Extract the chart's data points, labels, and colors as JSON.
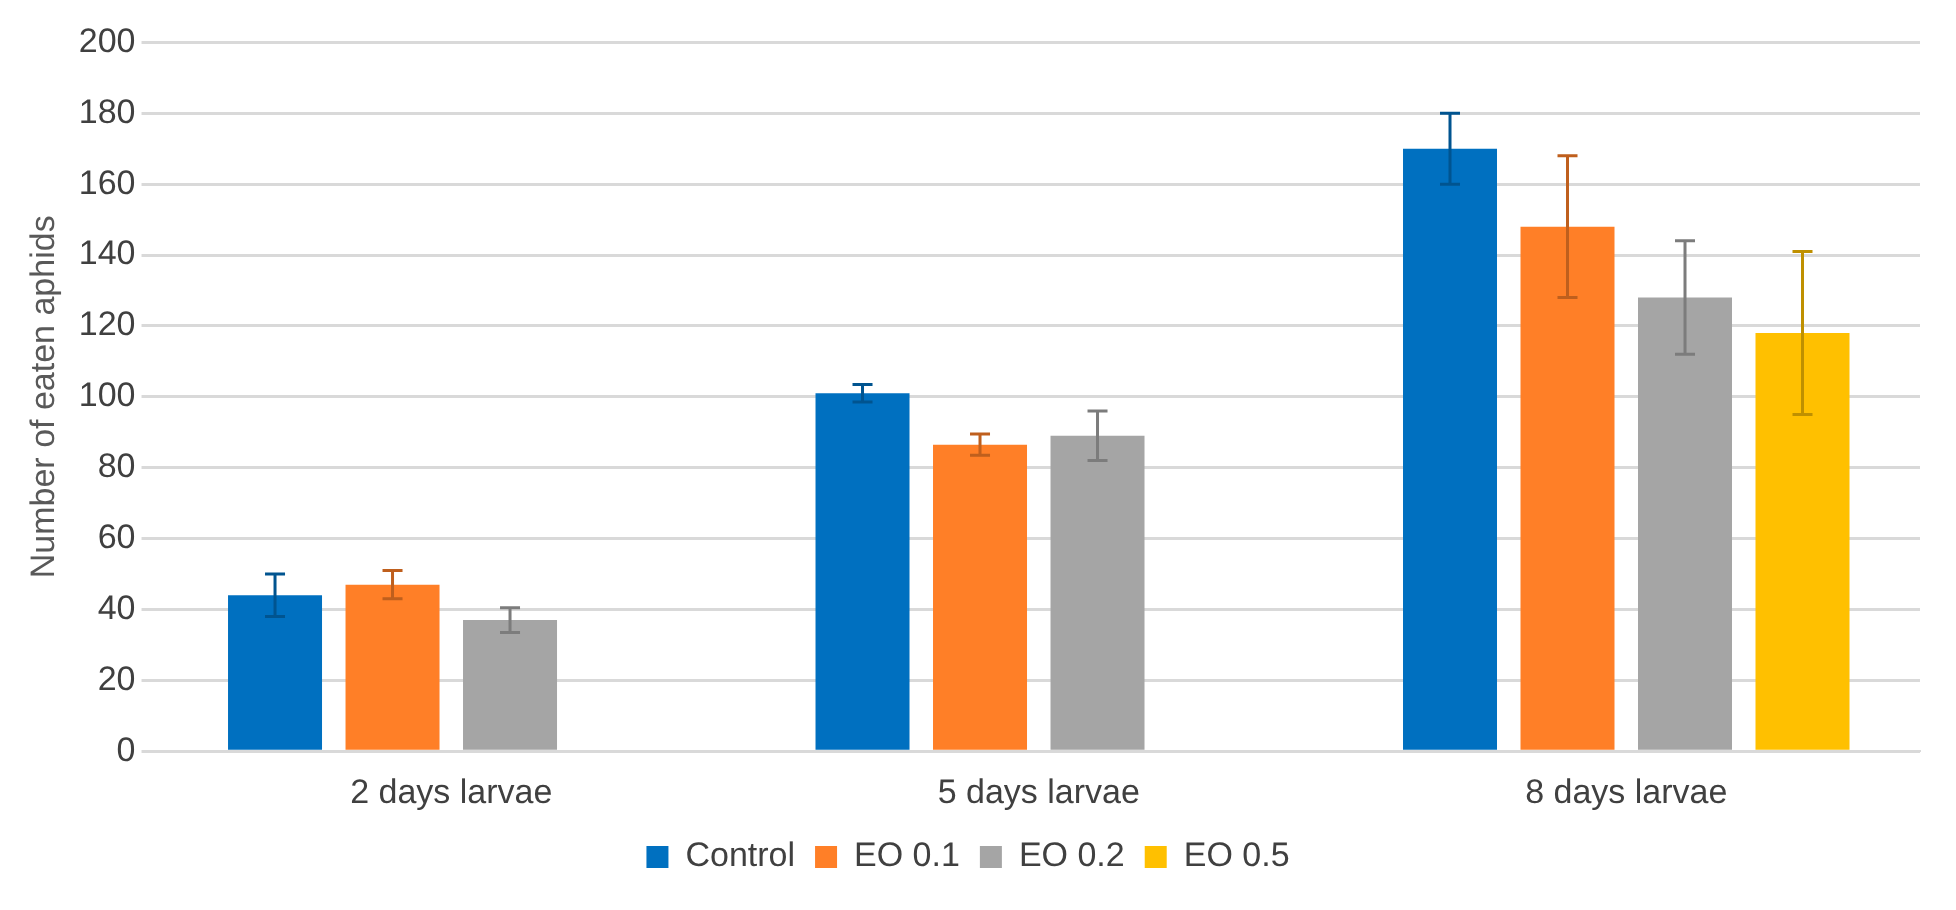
{
  "chart_data": {
    "type": "bar",
    "ylabel": "Number of eaten aphids",
    "categories": [
      "2 days larvae",
      "5 days larvae",
      "8 days larvae"
    ],
    "series": [
      {
        "name": "Control",
        "color": "#0070c0",
        "values": [
          44,
          101,
          170
        ],
        "errors": [
          6,
          2.5,
          10
        ]
      },
      {
        "name": "EO 0.1",
        "color": "#ff7f27",
        "values": [
          47,
          86.5,
          148
        ],
        "errors": [
          4,
          3,
          20
        ]
      },
      {
        "name": "EO 0.2",
        "color": "#a5a5a5",
        "values": [
          37,
          89,
          128
        ],
        "errors": [
          3.5,
          7,
          16
        ]
      },
      {
        "name": "EO 0.5",
        "color": "#ffc000",
        "values": [
          null,
          null,
          118
        ],
        "errors": [
          null,
          null,
          23
        ]
      }
    ],
    "ylim": [
      0,
      200
    ],
    "yticks": [
      0,
      20,
      40,
      60,
      80,
      100,
      120,
      140,
      160,
      180,
      200
    ],
    "grid": "y",
    "legend": "bottom"
  }
}
